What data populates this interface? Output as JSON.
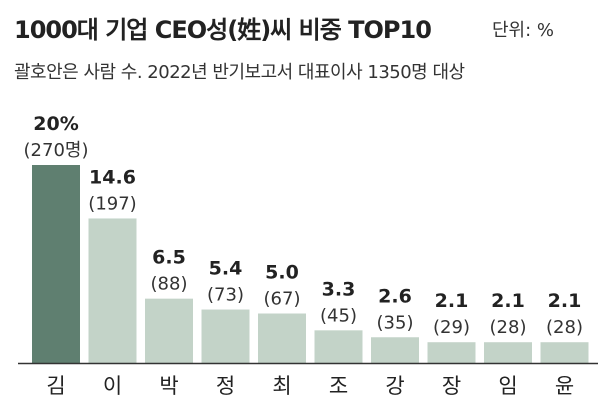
{
  "header": {
    "title": "1000대 기업 CEO성(姓)씨 비중 TOP10",
    "unit": "단위: %",
    "subtitle": "괄호안은 사람 수. 2022년 반기보고서 대표이사 1350명 대상"
  },
  "colors": {
    "highlight_bar": "#5f7f70",
    "bar": "#c3d3c8",
    "highlight_text": "#5f7f70",
    "text": "#222222",
    "baseline": "#333333"
  },
  "chart_data": {
    "type": "bar",
    "title": "1000대 기업 CEO성(姓)씨 비중 TOP10",
    "unit": "%",
    "categories": [
      "김",
      "이",
      "박",
      "정",
      "최",
      "조",
      "강",
      "장",
      "임",
      "윤"
    ],
    "values": [
      20,
      14.6,
      6.5,
      5.4,
      5.0,
      3.3,
      2.6,
      2.1,
      2.1,
      2.1
    ],
    "value_labels": [
      "20%",
      "14.6",
      "6.5",
      "5.4",
      "5.0",
      "3.3",
      "2.6",
      "2.1",
      "2.1",
      "2.1"
    ],
    "counts": [
      "(270명)",
      "(197)",
      "(88)",
      "(73)",
      "(67)",
      "(45)",
      "(35)",
      "(29)",
      "(28)",
      "(28)"
    ],
    "highlight_index": 0,
    "ylim": [
      0,
      20
    ],
    "grid": false,
    "legend": "none"
  }
}
